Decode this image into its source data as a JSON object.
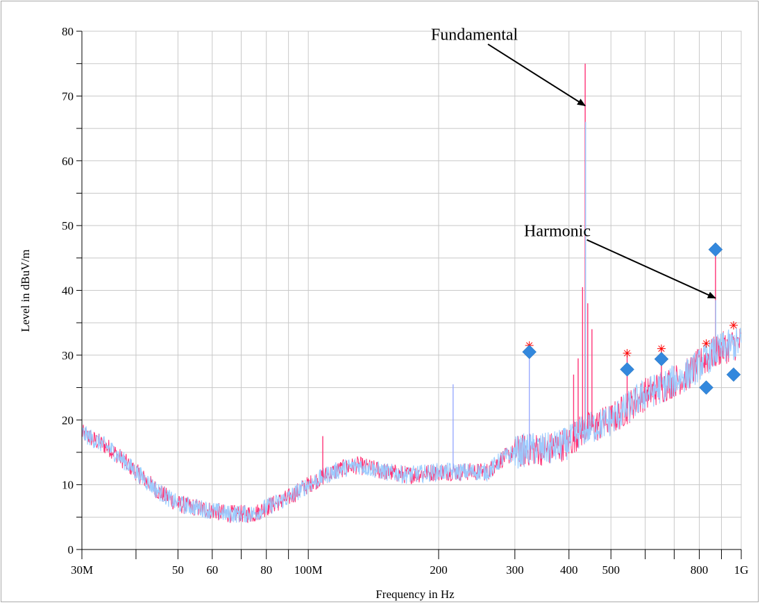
{
  "chart_data": {
    "type": "line",
    "title": "",
    "xlabel": "Frequency in Hz",
    "ylabel": "Level in dBuV/m",
    "x_scale": "log",
    "xlim": [
      30000000,
      1000000000
    ],
    "ylim": [
      0,
      80
    ],
    "grid": true,
    "x_major_ticks": [
      {
        "value": 30000000,
        "label": "30M"
      },
      {
        "value": 50000000,
        "label": "50"
      },
      {
        "value": 60000000,
        "label": "60"
      },
      {
        "value": 80000000,
        "label": "80"
      },
      {
        "value": 100000000,
        "label": "100M"
      },
      {
        "value": 200000000,
        "label": "200"
      },
      {
        "value": 300000000,
        "label": "300"
      },
      {
        "value": 400000000,
        "label": "400"
      },
      {
        "value": 500000000,
        "label": "500"
      },
      {
        "value": 800000000,
        "label": "800"
      },
      {
        "value": 1000000000,
        "label": "1G"
      }
    ],
    "x_minor_ticks": [
      40000000,
      70000000,
      90000000,
      600000000,
      700000000,
      900000000
    ],
    "y_ticks": [
      0,
      10,
      20,
      30,
      40,
      50,
      60,
      70,
      80
    ],
    "y_tick_labels": [
      "0",
      "10",
      "20",
      "30",
      "40",
      "50",
      "60",
      "70",
      "80"
    ],
    "series": [
      {
        "color": "#ff3377",
        "x": [
          30000000,
          35000000,
          40000000,
          45000000,
          50000000,
          55000000,
          60000000,
          65000000,
          70000000,
          75000000,
          80000000,
          90000000,
          100000000,
          110000000,
          120000000,
          130000000,
          140000000,
          150000000,
          170000000,
          200000000,
          230000000,
          260000000,
          280000000,
          300000000,
          330000000,
          360000000,
          400000000,
          420000000,
          436000000,
          460000000,
          500000000,
          550000000,
          600000000,
          650000000,
          700000000,
          750000000,
          800000000,
          850000000,
          900000000,
          950000000,
          1000000000
        ],
        "y": [
          18,
          15.5,
          12,
          9,
          7,
          6.5,
          6,
          5.5,
          5.5,
          5.5,
          6.5,
          8,
          10,
          11.5,
          12.5,
          13,
          12.5,
          12,
          11.5,
          12,
          12,
          12,
          14,
          15,
          15.5,
          15.5,
          16.5,
          18,
          18.5,
          19,
          20,
          22,
          24,
          25,
          26,
          27,
          28.5,
          30,
          31,
          31.5,
          32
        ]
      },
      {
        "color": "#99ccff",
        "x": [
          30000000,
          35000000,
          40000000,
          45000000,
          50000000,
          55000000,
          60000000,
          65000000,
          70000000,
          75000000,
          80000000,
          90000000,
          100000000,
          110000000,
          120000000,
          130000000,
          140000000,
          150000000,
          170000000,
          200000000,
          230000000,
          260000000,
          280000000,
          300000000,
          330000000,
          360000000,
          400000000,
          420000000,
          436000000,
          460000000,
          500000000,
          550000000,
          600000000,
          650000000,
          700000000,
          750000000,
          800000000,
          850000000,
          900000000,
          950000000,
          1000000000
        ],
        "y": [
          18,
          15.5,
          12,
          9,
          7,
          6.5,
          6,
          5.5,
          5.5,
          5.5,
          6.5,
          8,
          10,
          11.5,
          12.5,
          13,
          12.5,
          12,
          11.5,
          12,
          12,
          12,
          14,
          15,
          15.5,
          15.5,
          16.5,
          18,
          18.5,
          19,
          20,
          22,
          24,
          25,
          26,
          27,
          28.5,
          30,
          31,
          31.5,
          32
        ]
      }
    ],
    "spikes": [
      {
        "x": 108000000,
        "y": 17.5,
        "color": "#ff3377"
      },
      {
        "x": 216000000,
        "y": 25.5,
        "color": "#99aaff"
      },
      {
        "x": 324000000,
        "y": 31,
        "color": "#99aaff"
      },
      {
        "x": 410000000,
        "y": 27,
        "color": "#ff3377"
      },
      {
        "x": 420000000,
        "y": 29.5,
        "color": "#ff3377"
      },
      {
        "x": 430000000,
        "y": 40.5,
        "color": "#ff3377"
      },
      {
        "x": 436000000,
        "y": 75,
        "color": "#ff3377"
      },
      {
        "x": 437000000,
        "y": 66,
        "color": "#99ccff"
      },
      {
        "x": 442000000,
        "y": 38,
        "color": "#ff3377"
      },
      {
        "x": 452000000,
        "y": 34,
        "color": "#ff3377"
      },
      {
        "x": 545000000,
        "y": 30,
        "color": "#ff3377"
      },
      {
        "x": 654000000,
        "y": 31,
        "color": "#ff3377"
      },
      {
        "x": 872000000,
        "y": 46.5,
        "color": "#ff3377"
      },
      {
        "x": 873000000,
        "y": 38.5,
        "color": "#99ccff"
      }
    ],
    "star_markers": {
      "color": "#ff0000",
      "points": [
        {
          "x": 324000000,
          "y": 31.5
        },
        {
          "x": 545000000,
          "y": 30.3
        },
        {
          "x": 654000000,
          "y": 31
        },
        {
          "x": 830000000,
          "y": 31.8
        },
        {
          "x": 960000000,
          "y": 34.6
        }
      ]
    },
    "diamond_markers": {
      "color": "#3388dd",
      "points": [
        {
          "x": 324000000,
          "y": 30.5
        },
        {
          "x": 545000000,
          "y": 27.8
        },
        {
          "x": 654000000,
          "y": 29.4
        },
        {
          "x": 830000000,
          "y": 25
        },
        {
          "x": 872000000,
          "y": 46.3
        },
        {
          "x": 960000000,
          "y": 27
        }
      ]
    },
    "annotations": [
      {
        "text": "Fundamental",
        "text_x": 192000000,
        "text_y": 79.5,
        "arrow_from": [
          260000000,
          78
        ],
        "arrow_to": [
          436000000,
          68.5
        ]
      },
      {
        "text": "Harmonic",
        "text_x": 315000000,
        "text_y": 49.2,
        "arrow_from": [
          440000000,
          47.8
        ],
        "arrow_to": [
          872000000,
          38.8
        ]
      }
    ]
  }
}
